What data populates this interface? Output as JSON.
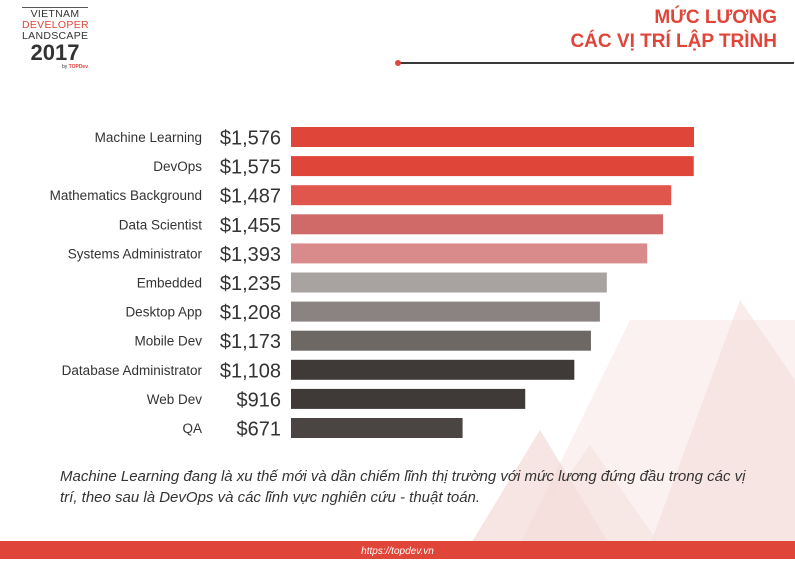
{
  "logo": {
    "line1": "VIETNAM",
    "line2": "DEVELOPER",
    "line3": "LANDSCAPE",
    "year": "2017",
    "by_prefix": "by ",
    "by_brand": "TOPDev"
  },
  "title": {
    "line1": "MỨC LƯƠNG",
    "line2": "CÁC VỊ TRÍ LẬP TRÌNH"
  },
  "colors": {
    "accent": "#e0453a",
    "dark": "#3a3a3a"
  },
  "chart_data": {
    "type": "bar",
    "orientation": "horizontal",
    "categories": [
      "Machine Learning",
      "DevOps",
      "Mathematics Background",
      "Data Scientist",
      "Systems Administrator",
      "Embedded",
      "Desktop App",
      "Mobile Dev",
      "Database Administrator",
      "Web Dev",
      "QA"
    ],
    "values": [
      1576,
      1575,
      1487,
      1455,
      1393,
      1235,
      1208,
      1173,
      1108,
      916,
      671
    ],
    "value_labels": [
      "$1,576",
      "$1,575",
      "$1,487",
      "$1,455",
      "$1,393",
      "$1,235",
      "$1,208",
      "$1,173",
      "$1,108",
      "$916",
      "$671"
    ],
    "bar_colors": [
      "#e0453a",
      "#e0453a",
      "#e0564c",
      "#d06a68",
      "#d98b8b",
      "#a8a2a0",
      "#8a8381",
      "#6e6865",
      "#3f3a38",
      "#3f3a38",
      "#4a4442"
    ],
    "xlim": [
      0,
      1576
    ],
    "grid": false,
    "legend": false
  },
  "caption": "Machine Learning đang là xu thế mới và dần chiếm lĩnh thị trường với mức lương đứng đầu trong các vị trí, theo sau là DevOps và các lĩnh vực nghiên cứu - thuật toán.",
  "footer": {
    "url": "https://topdev.vn"
  }
}
